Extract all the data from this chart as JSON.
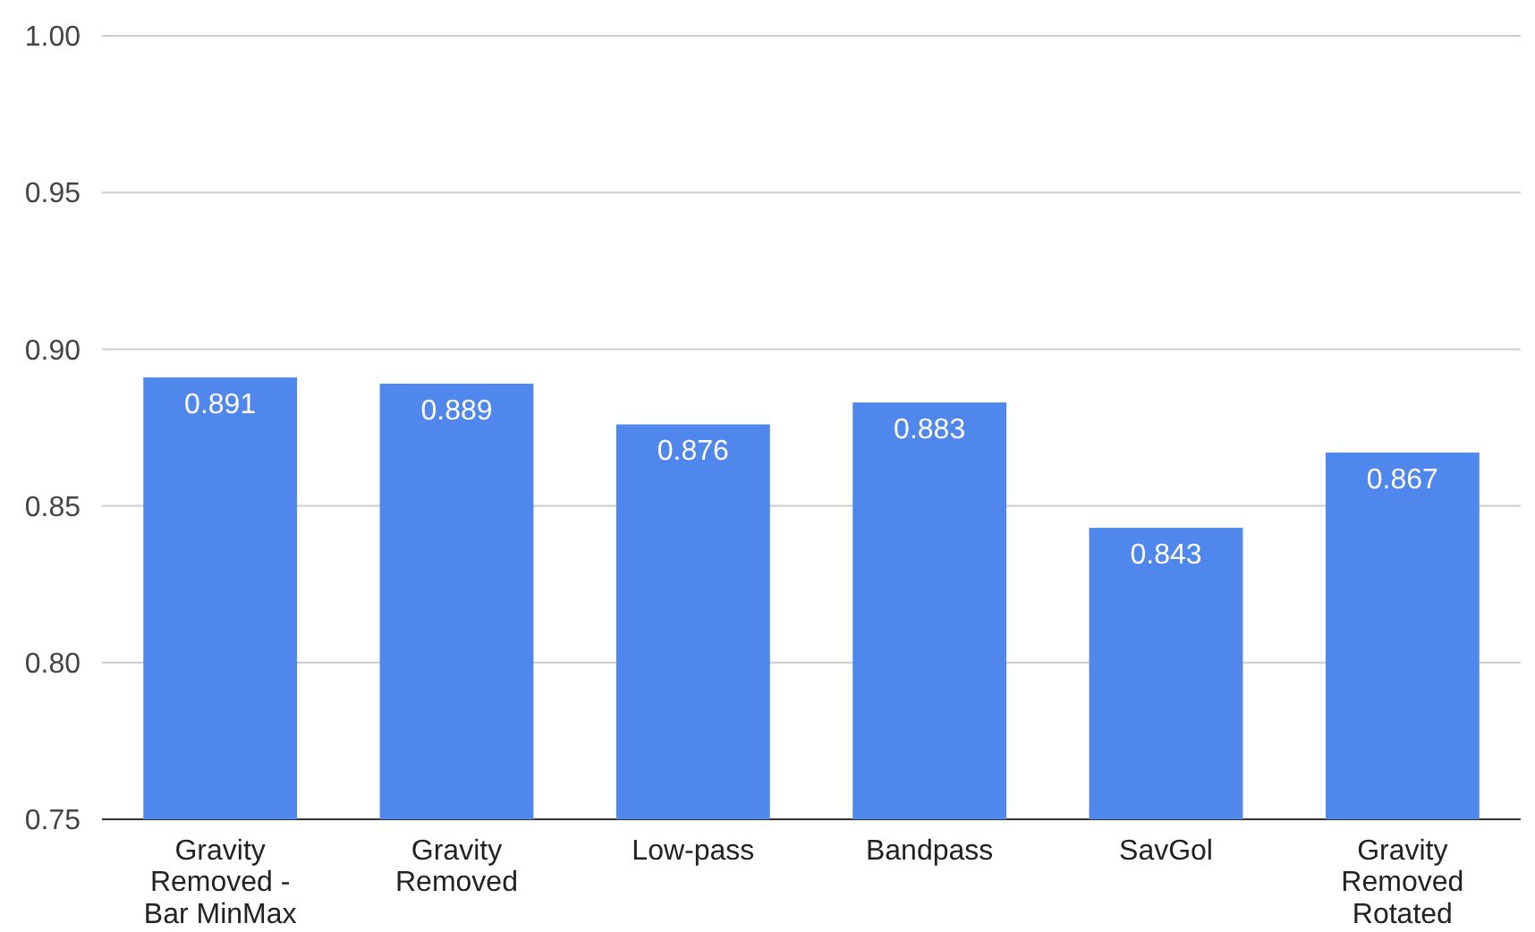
{
  "chart_data": {
    "type": "bar",
    "categories": [
      "Gravity Removed - Bar MinMax",
      "Gravity Removed",
      "Low-pass",
      "Bandpass",
      "SavGol",
      "Gravity Removed Rotated"
    ],
    "values": [
      0.891,
      0.889,
      0.876,
      0.883,
      0.843,
      0.867
    ],
    "color": "#5087ec",
    "ylim": [
      0.75,
      1.0
    ],
    "yticks": [
      {
        "value": 0.75,
        "label": "0.75"
      },
      {
        "value": 0.8,
        "label": "0.80"
      },
      {
        "value": 0.85,
        "label": "0.85"
      },
      {
        "value": 0.9,
        "label": "0.90"
      },
      {
        "value": 0.95,
        "label": "0.95"
      },
      {
        "value": 1.0,
        "label": "1.00"
      }
    ],
    "grid": "y",
    "data_labels": true
  }
}
